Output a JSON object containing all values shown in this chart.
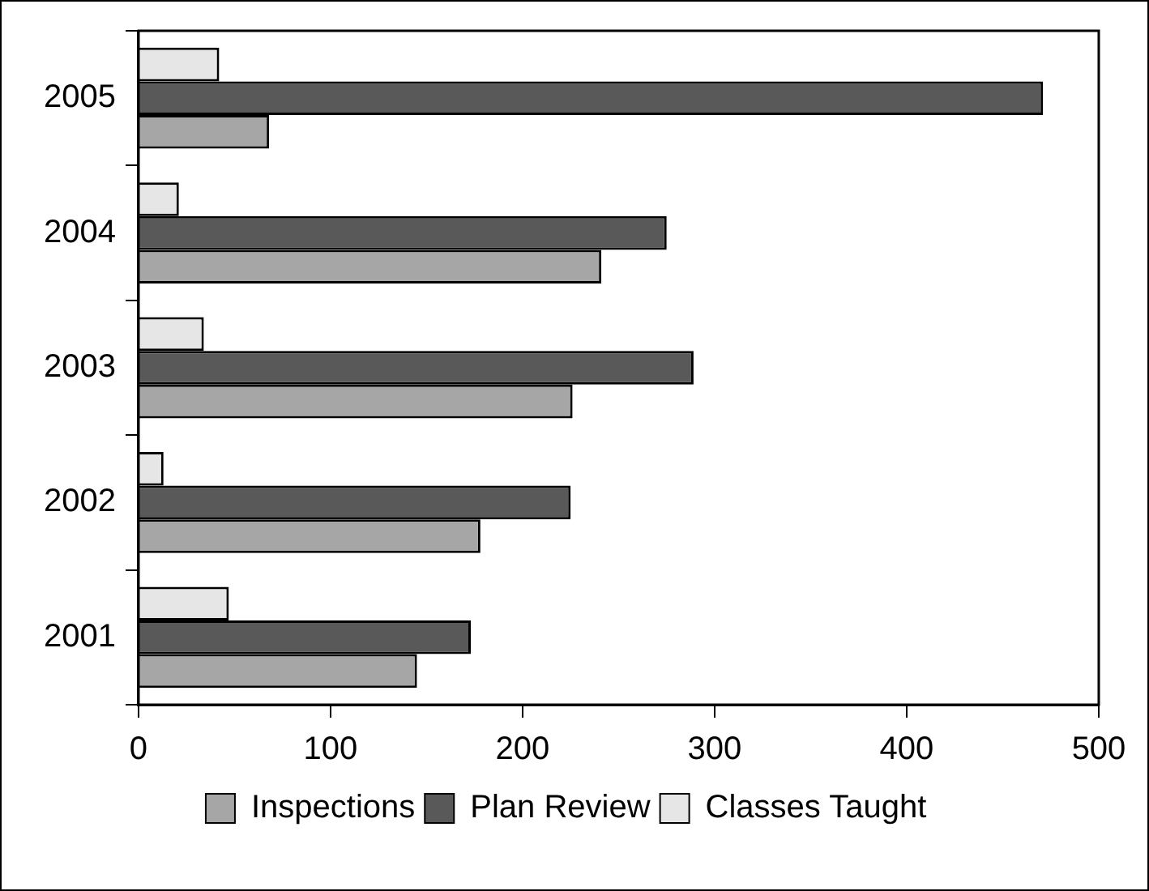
{
  "chart_data": {
    "type": "bar",
    "orientation": "horizontal",
    "categories": [
      "2005",
      "2004",
      "2003",
      "2002",
      "2001"
    ],
    "series": [
      {
        "name": "Inspections",
        "color": "#a6a6a6",
        "values": [
          68,
          241,
          226,
          178,
          145
        ]
      },
      {
        "name": "Plan Review",
        "color": "#595959",
        "values": [
          471,
          275,
          289,
          225,
          173
        ]
      },
      {
        "name": "Classes Taught",
        "color": "#e6e6e6",
        "values": [
          42,
          21,
          34,
          13,
          47
        ]
      }
    ],
    "xlim": [
      0,
      500
    ],
    "xticks": [
      0,
      100,
      200,
      300,
      400,
      500
    ],
    "grid": false,
    "legend": "bottom"
  }
}
